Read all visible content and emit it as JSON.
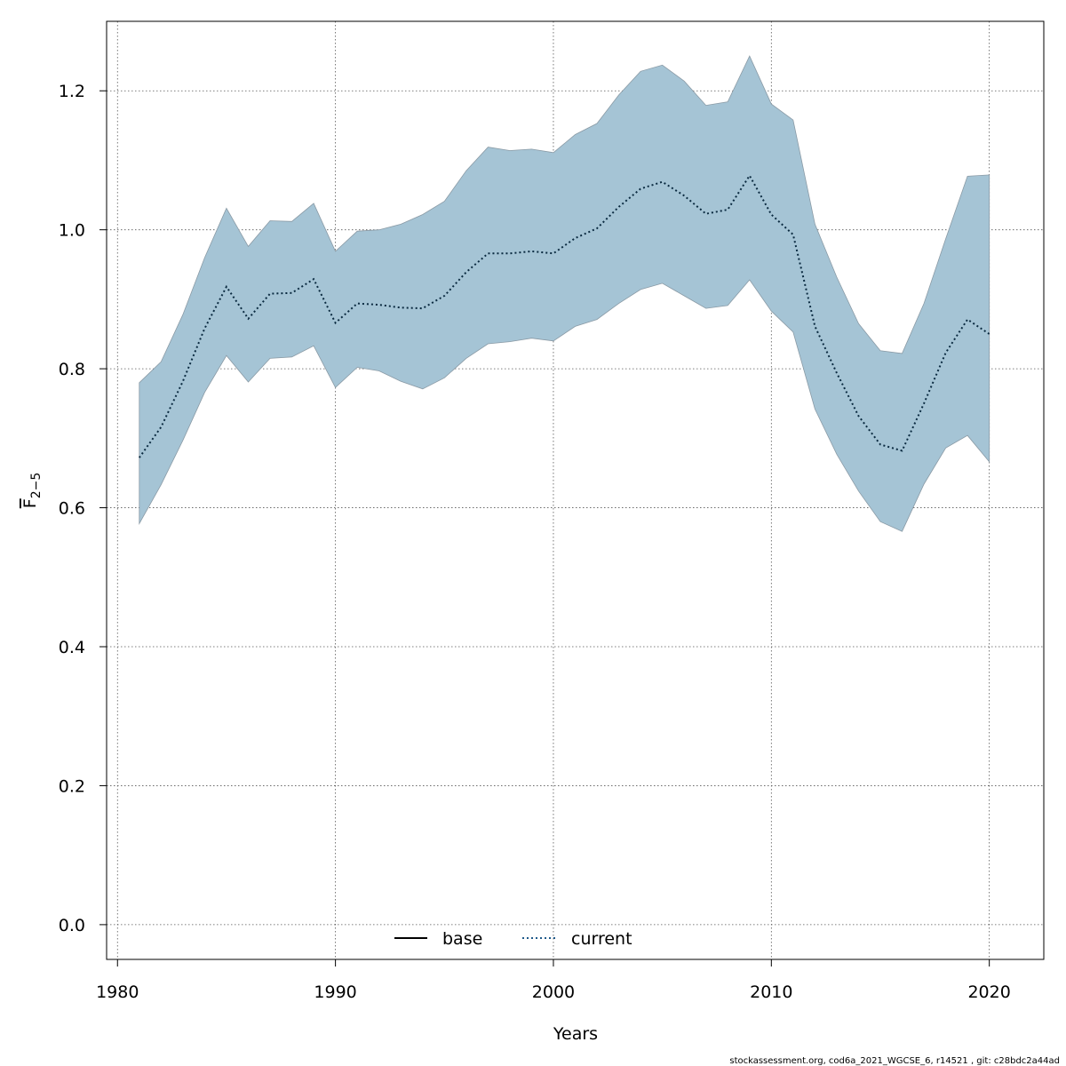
{
  "chart_data": {
    "type": "line",
    "xlabel": "Years",
    "ylabel": {
      "main": "F",
      "sub": "2−5"
    },
    "xlim": [
      1979.5,
      2022.5
    ],
    "ylim": [
      -0.05,
      1.3
    ],
    "x_ticks": [
      1980,
      1990,
      2000,
      2010,
      2020
    ],
    "y_ticks": [
      0.0,
      0.2,
      0.4,
      0.6,
      0.8,
      1.0,
      1.2
    ],
    "x_tick_labels": [
      "1980",
      "1990",
      "2000",
      "2010",
      "2020"
    ],
    "y_tick_labels": [
      "0.0",
      "0.2",
      "0.4",
      "0.6",
      "0.8",
      "1.0",
      "1.2"
    ],
    "grid": true,
    "legend_position": "bottom-center",
    "legend": [
      {
        "label": "base",
        "style": "solid",
        "color": "#000000"
      },
      {
        "label": "current",
        "style": "dotted",
        "color": "#1f5a8a"
      }
    ],
    "band_color": "#a5c4d5",
    "band_stroke": "#8a9aa5",
    "years": [
      1981,
      1982,
      1983,
      1984,
      1985,
      1986,
      1987,
      1988,
      1989,
      1990,
      1991,
      1992,
      1993,
      1994,
      1995,
      1996,
      1997,
      1998,
      1999,
      2000,
      2001,
      2002,
      2003,
      2004,
      2005,
      2006,
      2007,
      2008,
      2009,
      2010,
      2011,
      2012,
      2013,
      2014,
      2015,
      2016,
      2017,
      2018,
      2019,
      2020
    ],
    "series": [
      {
        "name": "current",
        "values": [
          0.672,
          0.716,
          0.782,
          0.858,
          0.918,
          0.872,
          0.908,
          0.909,
          0.929,
          0.866,
          0.894,
          0.892,
          0.888,
          0.887,
          0.905,
          0.939,
          0.966,
          0.966,
          0.969,
          0.966,
          0.988,
          1.002,
          1.033,
          1.059,
          1.069,
          1.049,
          1.023,
          1.029,
          1.078,
          1.022,
          0.993,
          0.861,
          0.794,
          0.732,
          0.691,
          0.682,
          0.75,
          0.823,
          0.871,
          0.85
        ],
        "lower": [
          0.577,
          0.633,
          0.697,
          0.766,
          0.819,
          0.781,
          0.815,
          0.817,
          0.833,
          0.773,
          0.802,
          0.797,
          0.782,
          0.771,
          0.787,
          0.815,
          0.836,
          0.839,
          0.844,
          0.84,
          0.861,
          0.871,
          0.894,
          0.914,
          0.923,
          0.905,
          0.887,
          0.891,
          0.928,
          0.883,
          0.853,
          0.742,
          0.677,
          0.624,
          0.58,
          0.566,
          0.634,
          0.686,
          0.704,
          0.666
        ],
        "upper": [
          0.78,
          0.81,
          0.878,
          0.96,
          1.031,
          0.976,
          1.013,
          1.012,
          1.038,
          0.969,
          0.998,
          1.0,
          1.008,
          1.022,
          1.041,
          1.085,
          1.119,
          1.114,
          1.116,
          1.111,
          1.137,
          1.153,
          1.194,
          1.228,
          1.237,
          1.214,
          1.179,
          1.184,
          1.25,
          1.181,
          1.158,
          1.008,
          0.932,
          0.865,
          0.826,
          0.822,
          0.894,
          0.987,
          1.077,
          1.079
        ]
      }
    ]
  },
  "footer": "stockassessment.org, cod6a_2021_WGCSE_6, r14521 , git: c28bdc2a44ad"
}
